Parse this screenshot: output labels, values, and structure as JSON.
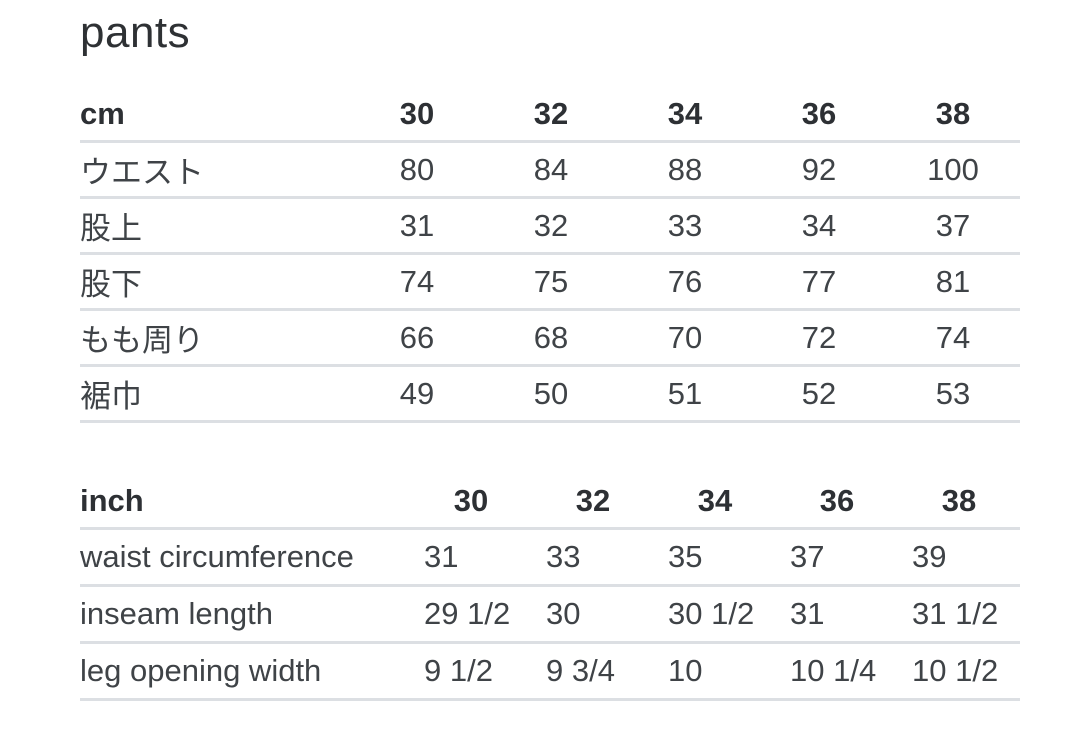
{
  "page": {
    "title": "pants"
  },
  "colors": {
    "background": "#ffffff",
    "text": "#3f4347",
    "header_text": "#2d3034",
    "divider": "#dcdfe3"
  },
  "cm_table": {
    "unit_label": "cm",
    "sizes": [
      "30",
      "32",
      "34",
      "36",
      "38"
    ],
    "rows": [
      {
        "label": "ウエスト",
        "values": [
          "80",
          "84",
          "88",
          "92",
          "100"
        ]
      },
      {
        "label": "股上",
        "values": [
          "31",
          "32",
          "33",
          "34",
          "37"
        ]
      },
      {
        "label": "股下",
        "values": [
          "74",
          "75",
          "76",
          "77",
          "81"
        ]
      },
      {
        "label": "もも周り",
        "values": [
          "66",
          "68",
          "70",
          "72",
          "74"
        ]
      },
      {
        "label": "裾巾",
        "values": [
          "49",
          "50",
          "51",
          "52",
          "53"
        ]
      }
    ]
  },
  "inch_table": {
    "unit_label": "inch",
    "sizes": [
      "30",
      "32",
      "34",
      "36",
      "38"
    ],
    "rows": [
      {
        "label": "waist circumference",
        "values": [
          "31",
          "33",
          "35",
          "37",
          "39"
        ]
      },
      {
        "label": "inseam length",
        "values": [
          "29 1/2",
          "30",
          "30 1/2",
          "31",
          "31 1/2"
        ]
      },
      {
        "label": "leg opening width",
        "values": [
          "9 1/2",
          "9 3/4",
          "10",
          "10 1/4",
          "10 1/2"
        ]
      }
    ]
  }
}
